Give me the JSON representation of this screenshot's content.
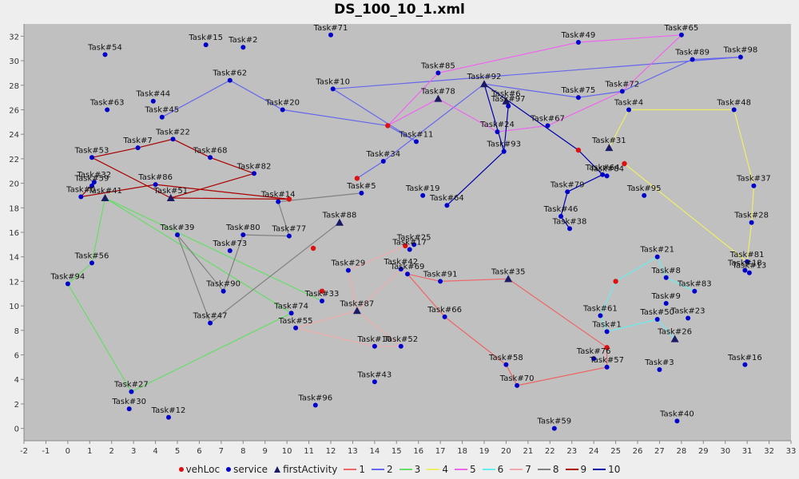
{
  "chart_data": {
    "type": "scatter",
    "title": "DS_100_10_1.xml",
    "xlim": [
      -2,
      33
    ],
    "ylim": [
      -1,
      33
    ],
    "xticks": [
      -2,
      -1,
      0,
      1,
      2,
      3,
      4,
      5,
      6,
      7,
      8,
      9,
      10,
      11,
      12,
      13,
      14,
      15,
      16,
      17,
      18,
      19,
      20,
      21,
      22,
      23,
      24,
      25,
      26,
      27,
      28,
      29,
      30,
      31,
      32,
      33
    ],
    "yticks": [
      0,
      2,
      4,
      6,
      8,
      10,
      12,
      14,
      16,
      18,
      20,
      22,
      24,
      26,
      28,
      30,
      32
    ],
    "grid": false,
    "legend_position": "bottom",
    "colors": {
      "plot_bg": "#c0c0c0",
      "service": "#0000cc",
      "vehLoc": "#dd1111",
      "firstActivity": "#1a1a66",
      "route_1": "#ee6666",
      "route_2": "#6666ee",
      "route_3": "#66dd66",
      "route_4": "#eeee66",
      "route_5": "#ee66ee",
      "route_6": "#66eeee",
      "route_7": "#eeaaaa",
      "route_8": "#808080",
      "route_9": "#aa0000",
      "route_10": "#0000aa"
    },
    "legend": [
      {
        "label": "vehLoc",
        "symbol": "red-dot"
      },
      {
        "label": "service",
        "symbol": "blue-dot"
      },
      {
        "label": "firstActivity",
        "symbol": "triangle"
      },
      {
        "label": "1",
        "route": "1"
      },
      {
        "label": "2",
        "route": "2"
      },
      {
        "label": "3",
        "route": "3"
      },
      {
        "label": "4",
        "route": "4"
      },
      {
        "label": "5",
        "route": "5"
      },
      {
        "label": "6",
        "route": "6"
      },
      {
        "label": "7",
        "route": "7"
      },
      {
        "label": "8",
        "route": "8"
      },
      {
        "label": "9",
        "route": "9"
      },
      {
        "label": "10",
        "route": "10"
      }
    ],
    "tasks": [
      {
        "label": "Task#54",
        "x": 1.7,
        "y": 30.5
      },
      {
        "label": "Task#15",
        "x": 6.3,
        "y": 31.3
      },
      {
        "label": "Task#2",
        "x": 8.0,
        "y": 31.1
      },
      {
        "label": "Task#71",
        "x": 12.0,
        "y": 32.1
      },
      {
        "label": "Task#49",
        "x": 23.3,
        "y": 31.5
      },
      {
        "label": "Task#65",
        "x": 28.0,
        "y": 32.1
      },
      {
        "label": "Task#89",
        "x": 28.5,
        "y": 30.1
      },
      {
        "label": "Task#98",
        "x": 30.7,
        "y": 30.3
      },
      {
        "label": "Task#85",
        "x": 16.9,
        "y": 29.0
      },
      {
        "label": "Task#62",
        "x": 7.4,
        "y": 28.4
      },
      {
        "label": "Task#10",
        "x": 12.1,
        "y": 27.7
      },
      {
        "label": "Task#75",
        "x": 23.3,
        "y": 27.0
      },
      {
        "label": "Task#72",
        "x": 25.3,
        "y": 27.5
      },
      {
        "label": "Task#44",
        "x": 3.9,
        "y": 26.7
      },
      {
        "label": "Task#63",
        "x": 1.8,
        "y": 26.0
      },
      {
        "label": "Task#45",
        "x": 4.3,
        "y": 25.4
      },
      {
        "label": "Task#20",
        "x": 9.8,
        "y": 26.0
      },
      {
        "label": "Task#97",
        "x": 20.1,
        "y": 26.3
      },
      {
        "label": "Task#4",
        "x": 25.6,
        "y": 26.0
      },
      {
        "label": "Task#48",
        "x": 30.4,
        "y": 26.0
      },
      {
        "label": "Task#67",
        "x": 21.9,
        "y": 24.7
      },
      {
        "label": "Task#24",
        "x": 19.6,
        "y": 24.2
      },
      {
        "label": "Task#7",
        "x": 3.2,
        "y": 22.9
      },
      {
        "label": "Task#22",
        "x": 4.8,
        "y": 23.6
      },
      {
        "label": "Task#11",
        "x": 15.9,
        "y": 23.4
      },
      {
        "label": "Task#53",
        "x": 1.1,
        "y": 22.1
      },
      {
        "label": "Task#68",
        "x": 6.5,
        "y": 22.1
      },
      {
        "label": "Task#93",
        "x": 19.9,
        "y": 22.6
      },
      {
        "label": "Task#34",
        "x": 14.4,
        "y": 21.8
      },
      {
        "label": "Task#82",
        "x": 8.5,
        "y": 20.8
      },
      {
        "label": "Task#64",
        "x": 24.4,
        "y": 20.7
      },
      {
        "label": "Task#84",
        "x": 24.6,
        "y": 20.6
      },
      {
        "label": "Task#37",
        "x": 31.3,
        "y": 19.8
      },
      {
        "label": "Task#32",
        "x": 1.2,
        "y": 20.1
      },
      {
        "label": "Task#59",
        "x": 1.1,
        "y": 19.8
      },
      {
        "label": "Task#86",
        "x": 4.0,
        "y": 19.9
      },
      {
        "label": "Task#79",
        "x": 22.8,
        "y": 19.3
      },
      {
        "label": "Task#19",
        "x": 16.2,
        "y": 19.0
      },
      {
        "label": "Task#5",
        "x": 13.4,
        "y": 19.2
      },
      {
        "label": "Task#95",
        "x": 26.3,
        "y": 19.0
      },
      {
        "label": "Task#0",
        "x": 0.6,
        "y": 18.9
      },
      {
        "label": "Task#14",
        "x": 9.6,
        "y": 18.5
      },
      {
        "label": "Task#64",
        "x": 17.3,
        "y": 18.2
      },
      {
        "label": "Task#46",
        "x": 22.5,
        "y": 17.3
      },
      {
        "label": "Task#28",
        "x": 31.2,
        "y": 16.8
      },
      {
        "label": "Task#38",
        "x": 22.9,
        "y": 16.3
      },
      {
        "label": "Task#80",
        "x": 8.0,
        "y": 15.8
      },
      {
        "label": "Task#77",
        "x": 10.1,
        "y": 15.7
      },
      {
        "label": "Task#39",
        "x": 5.0,
        "y": 15.8
      },
      {
        "label": "Task#25",
        "x": 15.8,
        "y": 15.0
      },
      {
        "label": "Task#17",
        "x": 15.6,
        "y": 14.6
      },
      {
        "label": "Task#73",
        "x": 7.4,
        "y": 14.5
      },
      {
        "label": "Task#56",
        "x": 1.1,
        "y": 13.5
      },
      {
        "label": "Task#21",
        "x": 26.9,
        "y": 14.0
      },
      {
        "label": "Task#81",
        "x": 31.0,
        "y": 13.6
      },
      {
        "label": "Task#18",
        "x": 30.9,
        "y": 12.9
      },
      {
        "label": "Task#13",
        "x": 31.1,
        "y": 12.7
      },
      {
        "label": "Task#29",
        "x": 12.8,
        "y": 12.9
      },
      {
        "label": "Task#42",
        "x": 15.2,
        "y": 13.0
      },
      {
        "label": "Task#8",
        "x": 27.3,
        "y": 12.3
      },
      {
        "label": "Task#69",
        "x": 15.5,
        "y": 12.6
      },
      {
        "label": "Task#91",
        "x": 17.0,
        "y": 12.0
      },
      {
        "label": "Task#94",
        "x": 0.0,
        "y": 11.8
      },
      {
        "label": "Task#83",
        "x": 28.6,
        "y": 11.2
      },
      {
        "label": "Task#90",
        "x": 7.1,
        "y": 11.2
      },
      {
        "label": "Task#9",
        "x": 27.3,
        "y": 10.2
      },
      {
        "label": "Task#33",
        "x": 11.6,
        "y": 10.4
      },
      {
        "label": "Task#74",
        "x": 10.2,
        "y": 9.4
      },
      {
        "label": "Task#61",
        "x": 24.3,
        "y": 9.2
      },
      {
        "label": "Task#23",
        "x": 28.3,
        "y": 9.0
      },
      {
        "label": "Task#50",
        "x": 26.9,
        "y": 8.9
      },
      {
        "label": "Task#66",
        "x": 17.2,
        "y": 9.1
      },
      {
        "label": "Task#47",
        "x": 6.5,
        "y": 8.6
      },
      {
        "label": "Task#55",
        "x": 10.4,
        "y": 8.2
      },
      {
        "label": "Task#1",
        "x": 24.6,
        "y": 7.9
      },
      {
        "label": "Task#10",
        "x": 14.0,
        "y": 6.7
      },
      {
        "label": "Task#52",
        "x": 15.2,
        "y": 6.7
      },
      {
        "label": "Task#76",
        "x": 24.0,
        "y": 5.7
      },
      {
        "label": "Task#57",
        "x": 24.6,
        "y": 5.0
      },
      {
        "label": "Task#58",
        "x": 20.0,
        "y": 5.2
      },
      {
        "label": "Task#3",
        "x": 27.0,
        "y": 4.8
      },
      {
        "label": "Task#16",
        "x": 30.9,
        "y": 5.2
      },
      {
        "label": "Task#43",
        "x": 14.0,
        "y": 3.8
      },
      {
        "label": "Task#70",
        "x": 20.5,
        "y": 3.5
      },
      {
        "label": "Task#27",
        "x": 2.9,
        "y": 3.0
      },
      {
        "label": "Task#96",
        "x": 11.3,
        "y": 1.9
      },
      {
        "label": "Task#30",
        "x": 2.8,
        "y": 1.6
      },
      {
        "label": "Task#12",
        "x": 4.6,
        "y": 0.9
      },
      {
        "label": "Task#59",
        "x": 22.2,
        "y": 0.0
      },
      {
        "label": "Task#40",
        "x": 27.8,
        "y": 0.6
      }
    ],
    "first_activities": [
      {
        "label": "Task#41",
        "x": 1.7,
        "y": 18.8
      },
      {
        "label": "Task#51",
        "x": 4.7,
        "y": 18.8
      },
      {
        "label": "Task#78",
        "x": 16.9,
        "y": 26.9
      },
      {
        "label": "Task#92",
        "x": 19.0,
        "y": 28.1
      },
      {
        "label": "Task#6",
        "x": 20.0,
        "y": 26.7
      },
      {
        "label": "Task#31",
        "x": 24.7,
        "y": 22.9
      },
      {
        "label": "Task#88",
        "x": 12.4,
        "y": 16.8
      },
      {
        "label": "Task#35",
        "x": 20.1,
        "y": 12.2
      },
      {
        "label": "Task#87",
        "x": 13.2,
        "y": 9.6
      },
      {
        "label": "Task#26",
        "x": 27.7,
        "y": 7.3
      }
    ],
    "veh_locs": [
      {
        "x": 14.6,
        "y": 24.7
      },
      {
        "x": 23.3,
        "y": 22.7
      },
      {
        "x": 25.4,
        "y": 21.6
      },
      {
        "x": 13.2,
        "y": 20.4
      },
      {
        "x": 10.1,
        "y": 18.7
      },
      {
        "x": 11.2,
        "y": 14.7
      },
      {
        "x": 15.4,
        "y": 14.9
      },
      {
        "x": 25.0,
        "y": 12.0
      },
      {
        "x": 11.6,
        "y": 11.2
      },
      {
        "x": 24.6,
        "y": 6.6
      }
    ],
    "routes": [
      {
        "name": "1",
        "points": [
          [
            20.1,
            12.2
          ],
          [
            24.6,
            6.6
          ],
          [
            24.6,
            5.0
          ],
          [
            20.5,
            3.5
          ],
          [
            20.0,
            5.2
          ],
          [
            17.2,
            9.1
          ],
          [
            15.5,
            12.6
          ],
          [
            17.0,
            12.0
          ],
          [
            20.1,
            12.2
          ]
        ]
      },
      {
        "name": "2",
        "points": [
          [
            4.3,
            25.4
          ],
          [
            7.4,
            28.4
          ],
          [
            9.8,
            26.0
          ],
          [
            14.6,
            24.7
          ],
          [
            15.9,
            23.4
          ],
          [
            12.1,
            27.7
          ],
          [
            30.7,
            30.3
          ],
          [
            28.5,
            30.1
          ],
          [
            25.3,
            27.5
          ],
          [
            23.3,
            27.0
          ],
          [
            19.0,
            28.1
          ],
          [
            14.4,
            21.8
          ],
          [
            13.2,
            20.4
          ]
        ]
      },
      {
        "name": "3",
        "points": [
          [
            1.7,
            18.8
          ],
          [
            1.1,
            13.5
          ],
          [
            0.0,
            11.8
          ],
          [
            2.9,
            3.0
          ],
          [
            10.2,
            9.4
          ],
          [
            1.7,
            18.8
          ],
          [
            11.6,
            10.4
          ]
        ]
      },
      {
        "name": "4",
        "points": [
          [
            24.7,
            22.9
          ],
          [
            25.6,
            26.0
          ],
          [
            30.4,
            26.0
          ],
          [
            31.3,
            19.8
          ],
          [
            31.2,
            16.8
          ],
          [
            31.0,
            13.6
          ],
          [
            25.4,
            21.6
          ]
        ]
      },
      {
        "name": "5",
        "points": [
          [
            14.6,
            24.7
          ],
          [
            16.9,
            29.0
          ],
          [
            23.3,
            31.5
          ],
          [
            28.0,
            32.1
          ],
          [
            25.3,
            27.5
          ],
          [
            21.9,
            24.7
          ],
          [
            19.6,
            24.2
          ],
          [
            16.9,
            26.9
          ],
          [
            14.6,
            24.7
          ]
        ]
      },
      {
        "name": "6",
        "points": [
          [
            27.7,
            7.3
          ],
          [
            26.9,
            8.9
          ],
          [
            24.6,
            7.9
          ],
          [
            24.3,
            9.2
          ],
          [
            25.0,
            12.0
          ],
          [
            26.9,
            14.0
          ],
          [
            27.3,
            12.3
          ],
          [
            28.6,
            11.2
          ]
        ]
      },
      {
        "name": "7",
        "points": [
          [
            15.4,
            14.9
          ],
          [
            12.8,
            12.9
          ],
          [
            13.2,
            9.6
          ],
          [
            10.4,
            8.2
          ],
          [
            14.0,
            6.7
          ],
          [
            15.2,
            6.7
          ],
          [
            13.2,
            9.6
          ],
          [
            15.2,
            13.0
          ],
          [
            15.5,
            12.6
          ]
        ]
      },
      {
        "name": "8",
        "points": [
          [
            12.4,
            16.8
          ],
          [
            6.5,
            8.6
          ],
          [
            5.0,
            15.8
          ],
          [
            7.1,
            11.2
          ],
          [
            8.0,
            15.8
          ],
          [
            10.1,
            15.7
          ],
          [
            9.6,
            18.5
          ],
          [
            13.4,
            19.2
          ]
        ]
      },
      {
        "name": "9",
        "points": [
          [
            4.7,
            18.8
          ],
          [
            1.1,
            22.1
          ],
          [
            3.2,
            22.9
          ],
          [
            4.8,
            23.6
          ],
          [
            6.5,
            22.1
          ],
          [
            8.5,
            20.8
          ],
          [
            4.7,
            18.8
          ],
          [
            10.1,
            18.7
          ],
          [
            4.0,
            19.9
          ],
          [
            0.6,
            18.9
          ],
          [
            1.2,
            20.1
          ]
        ]
      },
      {
        "name": "10",
        "points": [
          [
            20.0,
            26.7
          ],
          [
            20.1,
            26.3
          ],
          [
            19.9,
            22.6
          ],
          [
            17.3,
            18.2
          ],
          [
            19.9,
            22.6
          ],
          [
            19.0,
            28.1
          ],
          [
            23.3,
            22.7
          ],
          [
            24.4,
            20.7
          ],
          [
            22.8,
            19.3
          ],
          [
            22.5,
            17.3
          ],
          [
            22.9,
            16.3
          ]
        ]
      }
    ]
  }
}
